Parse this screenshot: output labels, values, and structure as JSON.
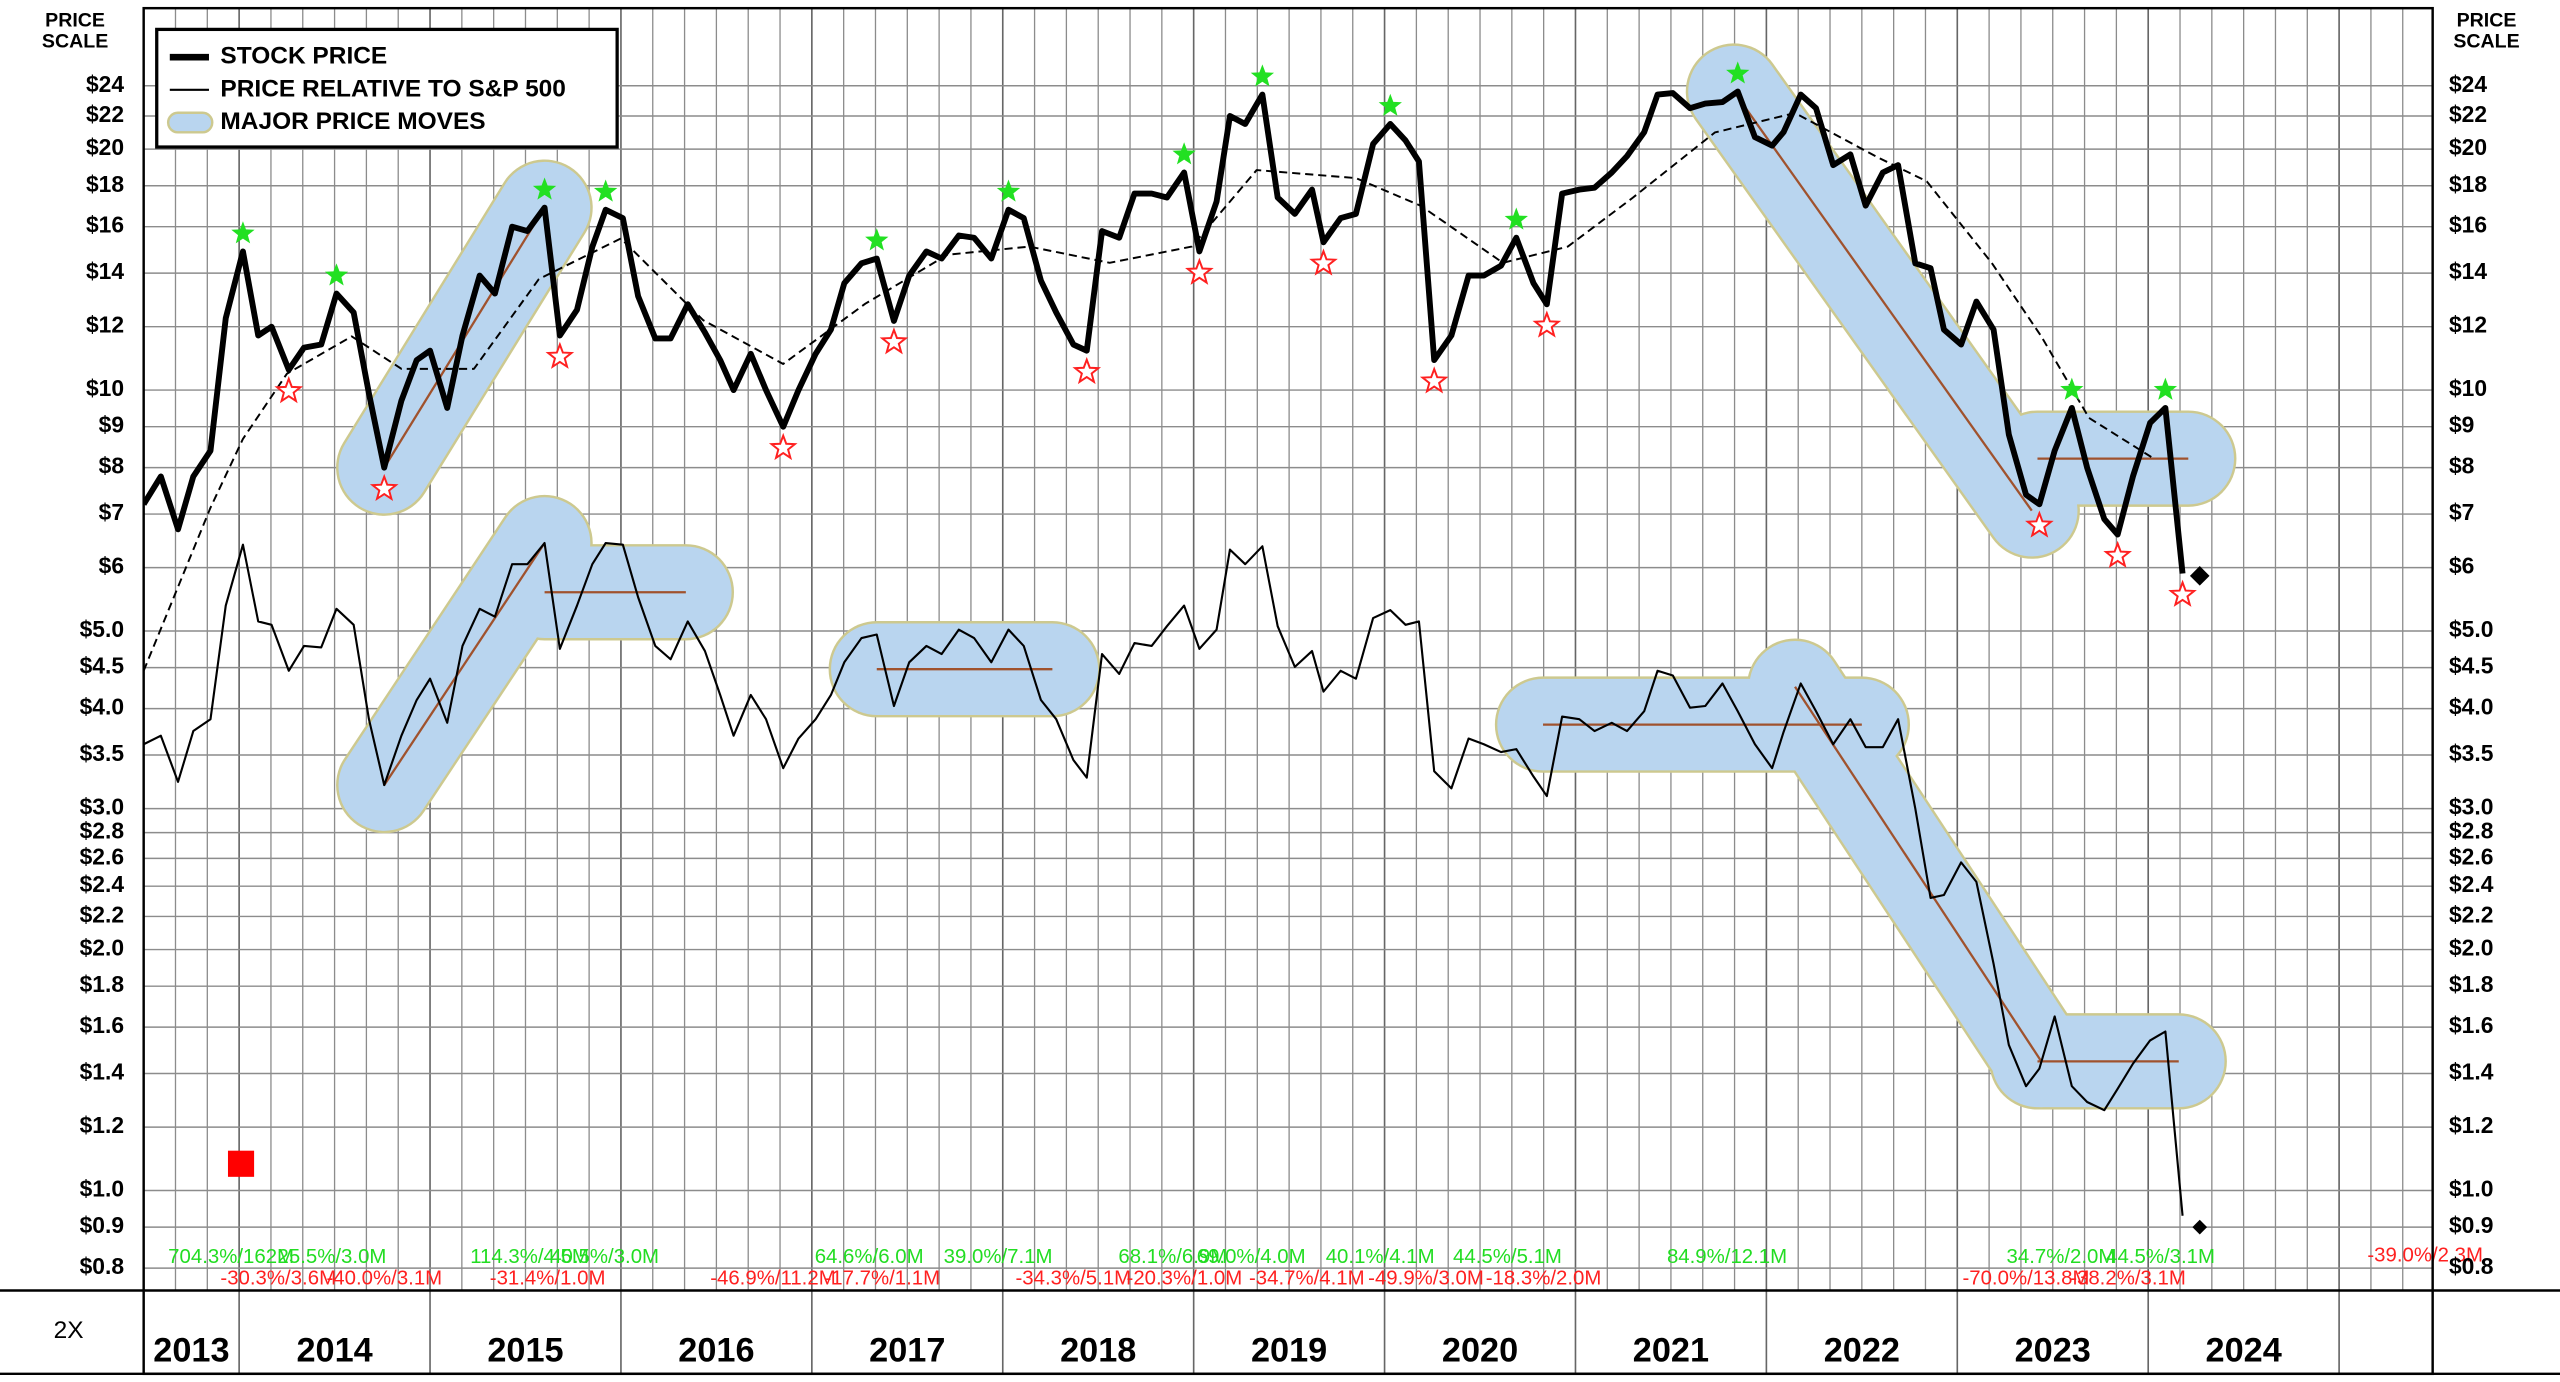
{
  "chart_data": {
    "type": "line",
    "y_axis_label": [
      "PRICE",
      "SCALE"
    ],
    "scale_label": "2X",
    "log_scale": true,
    "grid": true,
    "legend": "upper left",
    "xlim": [
      2013.5,
      2025.49
    ],
    "xticks": [
      2014,
      2015,
      2016,
      2017,
      2018,
      2019,
      2020,
      2021,
      2022,
      2023,
      2024,
      2025
    ],
    "year_labels": [
      "2013",
      "2014",
      "2015",
      "2016",
      "2017",
      "2018",
      "2019",
      "2020",
      "2021",
      "2022",
      "2023",
      "2024"
    ],
    "ylim": [
      0.75,
      30
    ],
    "yticks": [
      {
        "value": 24,
        "label": "$24"
      },
      {
        "value": 22,
        "label": "$22"
      },
      {
        "value": 20,
        "label": "$20"
      },
      {
        "value": 18,
        "label": "$18"
      },
      {
        "value": 16,
        "label": "$16"
      },
      {
        "value": 14,
        "label": "$14"
      },
      {
        "value": 12,
        "label": "$12"
      },
      {
        "value": 10,
        "label": "$10"
      },
      {
        "value": 9,
        "label": "$9"
      },
      {
        "value": 8,
        "label": "$8"
      },
      {
        "value": 7,
        "label": "$7"
      },
      {
        "value": 6,
        "label": "$6"
      },
      {
        "value": 5,
        "label": "$5.0"
      },
      {
        "value": 4.5,
        "label": "$4.5"
      },
      {
        "value": 4,
        "label": "$4.0"
      },
      {
        "value": 3.5,
        "label": "$3.5"
      },
      {
        "value": 3,
        "label": "$3.0"
      },
      {
        "value": 2.8,
        "label": "$2.8"
      },
      {
        "value": 2.6,
        "label": "$2.6"
      },
      {
        "value": 2.4,
        "label": "$2.4"
      },
      {
        "value": 2.2,
        "label": "$2.2"
      },
      {
        "value": 2,
        "label": "$2.0"
      },
      {
        "value": 1.8,
        "label": "$1.8"
      },
      {
        "value": 1.6,
        "label": "$1.6"
      },
      {
        "value": 1.4,
        "label": "$1.4"
      },
      {
        "value": 1.2,
        "label": "$1.2"
      },
      {
        "value": 1,
        "label": "$1.0"
      },
      {
        "value": 0.9,
        "label": "$0.9"
      },
      {
        "value": 0.8,
        "label": "$0.8"
      }
    ],
    "x": [
      2013.5,
      2013.59,
      2013.68,
      2013.76,
      2013.85,
      2013.93,
      2014.02,
      2014.1,
      2014.17,
      2014.26,
      2014.34,
      2014.43,
      2014.51,
      2014.6,
      2014.68,
      2014.76,
      2014.85,
      2014.93,
      2015.0,
      2015.09,
      2015.17,
      2015.26,
      2015.34,
      2015.43,
      2015.51,
      2015.6,
      2015.68,
      2015.77,
      2015.85,
      2015.92,
      2016.01,
      2016.09,
      2016.18,
      2016.26,
      2016.35,
      2016.44,
      2016.52,
      2016.59,
      2016.68,
      2016.76,
      2016.85,
      2016.93,
      2017.02,
      2017.1,
      2017.17,
      2017.26,
      2017.34,
      2017.43,
      2017.51,
      2017.6,
      2017.68,
      2017.77,
      2017.85,
      2017.94,
      2018.03,
      2018.11,
      2018.2,
      2018.28,
      2018.37,
      2018.44,
      2018.52,
      2018.61,
      2018.69,
      2018.78,
      2018.86,
      2018.95,
      2019.03,
      2019.12,
      2019.19,
      2019.27,
      2019.36,
      2019.44,
      2019.53,
      2019.62,
      2019.68,
      2019.77,
      2019.85,
      2019.94,
      2020.03,
      2020.11,
      2020.18,
      2020.26,
      2020.35,
      2020.44,
      2020.52,
      2020.61,
      2020.69,
      2020.78,
      2020.85,
      2020.93,
      2021.02,
      2021.1,
      2021.19,
      2021.27,
      2021.36,
      2021.43,
      2021.51,
      2021.6,
      2021.68,
      2021.77,
      2021.85,
      2021.94,
      2022.03,
      2022.09,
      2022.18,
      2022.26,
      2022.35,
      2022.44,
      2022.52,
      2022.61,
      2022.69,
      2022.78,
      2022.86,
      2022.93,
      2023.02,
      2023.1,
      2023.19,
      2023.27,
      2023.36,
      2023.43,
      2023.51,
      2023.6,
      2023.68,
      2023.77,
      2023.84,
      2023.92,
      2024.01,
      2024.09,
      2024.18
    ],
    "series": [
      {
        "name": "STOCK PRICE",
        "color": "#000000",
        "values": [
          7.2,
          7.8,
          6.7,
          7.8,
          8.4,
          12.3,
          14.9,
          11.7,
          12.0,
          10.6,
          11.3,
          11.4,
          13.2,
          12.5,
          9.9,
          8.0,
          9.7,
          10.9,
          11.2,
          9.5,
          11.7,
          13.9,
          13.2,
          16.0,
          15.8,
          16.9,
          11.7,
          12.6,
          15.1,
          16.8,
          16.4,
          13.1,
          11.6,
          11.6,
          12.8,
          11.8,
          10.9,
          10.0,
          11.1,
          10.0,
          9.0,
          10.0,
          11.1,
          11.9,
          13.6,
          14.4,
          14.6,
          12.2,
          13.9,
          14.9,
          14.6,
          15.6,
          15.5,
          14.6,
          16.8,
          16.4,
          13.7,
          12.5,
          11.4,
          11.2,
          15.8,
          15.5,
          17.6,
          17.6,
          17.4,
          18.7,
          14.9,
          17.2,
          22.0,
          21.5,
          23.4,
          17.4,
          16.6,
          17.8,
          15.3,
          16.4,
          16.6,
          20.3,
          21.5,
          20.5,
          19.3,
          10.9,
          11.7,
          13.9,
          13.9,
          14.3,
          15.5,
          13.6,
          12.8,
          17.6,
          17.8,
          17.9,
          18.7,
          19.6,
          21.0,
          23.4,
          23.5,
          22.5,
          22.8,
          22.9,
          23.6,
          20.7,
          20.2,
          21.0,
          23.4,
          22.5,
          19.1,
          19.7,
          17.0,
          18.7,
          19.1,
          14.4,
          14.2,
          11.9,
          11.4,
          12.9,
          11.9,
          8.8,
          7.4,
          7.2,
          8.4,
          9.5,
          8.0,
          6.9,
          6.6,
          7.8,
          9.1,
          9.5,
          5.9
        ]
      },
      {
        "name": "PRICE RELATIVE TO S&P 500",
        "color": "#000000",
        "values": [
          3.61,
          3.7,
          3.24,
          3.75,
          3.88,
          5.38,
          6.41,
          5.14,
          5.09,
          4.46,
          4.79,
          4.77,
          5.33,
          5.09,
          3.88,
          3.21,
          3.7,
          4.1,
          4.36,
          3.84,
          4.79,
          5.33,
          5.21,
          6.06,
          6.06,
          6.44,
          4.75,
          5.38,
          6.06,
          6.44,
          6.41,
          5.51,
          4.79,
          4.61,
          5.14,
          4.72,
          4.16,
          3.7,
          4.16,
          3.88,
          3.37,
          3.67,
          3.88,
          4.16,
          4.57,
          4.9,
          4.95,
          4.03,
          4.57,
          4.79,
          4.68,
          5.02,
          4.9,
          4.57,
          5.02,
          4.79,
          4.1,
          3.88,
          3.45,
          3.28,
          4.68,
          4.42,
          4.83,
          4.79,
          5.07,
          5.38,
          4.75,
          5.02,
          6.32,
          6.06,
          6.38,
          5.07,
          4.51,
          4.72,
          4.2,
          4.46,
          4.36,
          5.19,
          5.31,
          5.09,
          5.14,
          3.34,
          3.18,
          3.67,
          3.61,
          3.53,
          3.56,
          3.29,
          3.11,
          3.91,
          3.88,
          3.75,
          3.84,
          3.75,
          3.97,
          4.46,
          4.4,
          4.01,
          4.03,
          4.3,
          3.97,
          3.61,
          3.37,
          3.74,
          4.3,
          3.97,
          3.61,
          3.88,
          3.58,
          3.58,
          3.88,
          3.0,
          2.32,
          2.34,
          2.57,
          2.43,
          1.92,
          1.52,
          1.35,
          1.42,
          1.65,
          1.35,
          1.29,
          1.26,
          1.34,
          1.44,
          1.54,
          1.58,
          0.93
        ]
      },
      {
        "color": "#000000",
        "dash": true,
        "x": [
          2013.5,
          2013.85,
          2014.02,
          2014.25,
          2014.59,
          2014.85,
          2015.23,
          2015.57,
          2016.0,
          2016.43,
          2016.85,
          2017.28,
          2017.71,
          2018.14,
          2018.56,
          2018.99,
          2019.33,
          2019.85,
          2020.19,
          2020.62,
          2020.96,
          2021.3,
          2021.73,
          2022.15,
          2022.58,
          2022.84,
          2023.18,
          2023.44,
          2023.69,
          2024.03
        ],
        "values": [
          4.46,
          7.13,
          8.69,
          10.48,
          11.67,
          10.63,
          10.63,
          13.76,
          15.47,
          12.23,
          10.78,
          12.82,
          14.76,
          15.11,
          14.42,
          15.11,
          18.83,
          18.4,
          16.99,
          14.42,
          15.11,
          17.39,
          20.98,
          22.19,
          19.55,
          18.23,
          14.42,
          11.67,
          9.23,
          8.21
        ]
      }
    ],
    "major_moves": {
      "name": "MAJOR PRICE MOVES",
      "color": "#b9d5ef",
      "border_color": "#cdc98f",
      "line_color": "#a0522d",
      "bands": [
        {
          "x": [
            2014.76,
            2015.6
          ],
          "values": [
            8.0,
            16.9
          ]
        },
        {
          "x": [
            2014.76,
            2015.6
          ],
          "values": [
            3.21,
            6.44
          ]
        },
        {
          "x": [
            2015.6,
            2016.34
          ],
          "values": [
            5.59,
            5.59
          ]
        },
        {
          "x": [
            2017.34,
            2018.26
          ],
          "values": [
            4.48,
            4.48
          ]
        },
        {
          "x": [
            2020.83,
            2022.5
          ],
          "values": [
            3.82,
            3.82
          ]
        },
        {
          "x": [
            2022.15,
            2023.44
          ],
          "values": [
            4.26,
            1.45
          ]
        },
        {
          "x": [
            2023.42,
            2024.16
          ],
          "values": [
            1.45,
            1.45
          ]
        },
        {
          "x": [
            2021.83,
            2023.39
          ],
          "values": [
            23.6,
            7.07
          ]
        },
        {
          "x": [
            2023.42,
            2024.21
          ],
          "values": [
            8.21,
            8.21
          ]
        }
      ]
    },
    "highs": {
      "color": "#22e022",
      "x": [
        2014.02,
        2014.51,
        2015.6,
        2015.92,
        2017.34,
        2018.03,
        2018.95,
        2019.36,
        2020.03,
        2020.69,
        2021.85,
        2023.6,
        2024.09
      ],
      "values": [
        14.9,
        13.2,
        16.9,
        16.8,
        14.6,
        16.8,
        18.7,
        23.4,
        21.5,
        15.5,
        23.6,
        9.5,
        9.5
      ]
    },
    "lows": {
      "color": "#ff2020",
      "x": [
        2014.26,
        2014.76,
        2015.68,
        2016.85,
        2017.43,
        2018.44,
        2019.03,
        2019.68,
        2020.26,
        2020.85,
        2023.43,
        2023.84,
        2024.18
      ],
      "values": [
        10.6,
        8.0,
        11.7,
        9.0,
        12.2,
        11.2,
        14.9,
        15.3,
        10.9,
        12.8,
        7.2,
        6.6,
        5.9
      ]
    },
    "current_markers": {
      "color": "#000000",
      "x": [
        2024.27,
        2024.27
      ],
      "values": [
        5.86,
        0.9
      ]
    },
    "signal_marker": {
      "color": "#ff0000",
      "x": 2014.01,
      "value": 1.08
    },
    "gain_labels": {
      "color": "#22dd22",
      "labels": [
        "704.3%/162M",
        "25.5%/3.0M",
        "114.3%/4.5M",
        "40.5%/3.0M",
        "64.6%/6.0M",
        "39.0%/7.1M",
        "68.1%/6.9M",
        "69.0%/4.0M",
        "40.1%/4.1M",
        "44.5%/5.1M",
        "84.9%/12.1M",
        "34.7%/2.0M",
        "44.5%/3.1M"
      ]
    },
    "loss_labels": {
      "color": "#ff2020",
      "labels": [
        "-30.3%/3.6M",
        "-40.0%/3.1M",
        "-31.4%/1.0M",
        "-46.9%/11.2M",
        "-17.7%/1.1M",
        "-34.3%/5.1M",
        "-20.3%/1.0M",
        "-34.7%/4.1M",
        "-49.9%/3.0M",
        "-18.3%/2.0M",
        "-70.0%/13.8M",
        "-38.2%/3.1M",
        "-39.0%/2.3M"
      ]
    }
  }
}
